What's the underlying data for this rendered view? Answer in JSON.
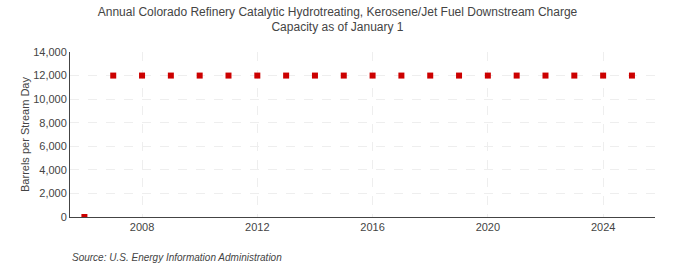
{
  "chart_data": {
    "type": "scatter",
    "title": "Annual Colorado Refinery Catalytic Hydrotreating, Kerosene/Jet Fuel Downstream Charge\nCapacity as of January 1",
    "ylabel": "Barrels per Stream Day",
    "annotations": [
      "Source: U.S. Energy Information Administration"
    ],
    "x": [
      2006,
      2007,
      2008,
      2009,
      2010,
      2011,
      2012,
      2013,
      2014,
      2015,
      2016,
      2017,
      2018,
      2019,
      2020,
      2021,
      2022,
      2023,
      2024,
      2025
    ],
    "values": [
      0,
      12000,
      12000,
      12000,
      12000,
      12000,
      12000,
      12000,
      12000,
      12000,
      12000,
      12000,
      12000,
      12000,
      12000,
      12000,
      12000,
      12000,
      12000,
      12000
    ],
    "color": "#cc0000",
    "marker": "square",
    "xlim": [
      2005.5,
      2025.8
    ],
    "xticks": [
      2008,
      2012,
      2016,
      2020,
      2024
    ],
    "ylim": [
      0,
      14000
    ],
    "yticks": [
      0,
      {
        "value": 2000,
        "label": "2,000"
      },
      {
        "value": 4000,
        "label": "4,000"
      },
      {
        "value": 6000,
        "label": "6,000"
      },
      {
        "value": 8000,
        "label": "8,000"
      },
      {
        "value": 10000,
        "label": "10,000"
      },
      {
        "value": 12000,
        "label": "12,000"
      },
      {
        "value": 14000,
        "label": "14,000"
      }
    ],
    "grid": true
  }
}
